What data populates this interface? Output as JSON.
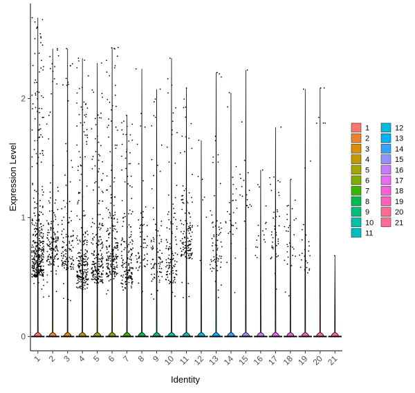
{
  "chart_data": {
    "type": "violin",
    "title": "",
    "xlabel": "Identity",
    "ylabel": "Expression Level",
    "ylim": [
      -0.12,
      2.8
    ],
    "y_ticks": [
      0,
      1,
      2
    ],
    "categories": [
      "1",
      "2",
      "3",
      "4",
      "5",
      "6",
      "7",
      "8",
      "9",
      "10",
      "11",
      "12",
      "13",
      "14",
      "15",
      "16",
      "17",
      "18",
      "19",
      "20",
      "21"
    ],
    "colors": [
      "#F8766D",
      "#EA8331",
      "#D89000",
      "#C09B00",
      "#A3A500",
      "#7CAE00",
      "#39B600",
      "#00BB4E",
      "#00BF7D",
      "#00C1A3",
      "#00BFC4",
      "#00BAE0",
      "#00B0F6",
      "#35A2FF",
      "#9590FF",
      "#C77CFF",
      "#E76BF3",
      "#FA62DB",
      "#FF62BC",
      "#FF6C91",
      "#FF6C91"
    ],
    "max_values": [
      2.68,
      2.42,
      2.42,
      2.34,
      2.3,
      2.43,
      1.86,
      2.25,
      2.08,
      2.34,
      2.09,
      1.65,
      2.22,
      2.05,
      2.24,
      1.4,
      1.76,
      1.32,
      2.08,
      2.09,
      0.68
    ],
    "legend": {
      "position": "right",
      "columns": [
        [
          "1",
          "2",
          "3",
          "4",
          "5",
          "6",
          "7",
          "8",
          "9",
          "10",
          "11"
        ],
        [
          "12",
          "13",
          "14",
          "15",
          "16",
          "17",
          "18",
          "19",
          "20",
          "21"
        ]
      ]
    }
  }
}
